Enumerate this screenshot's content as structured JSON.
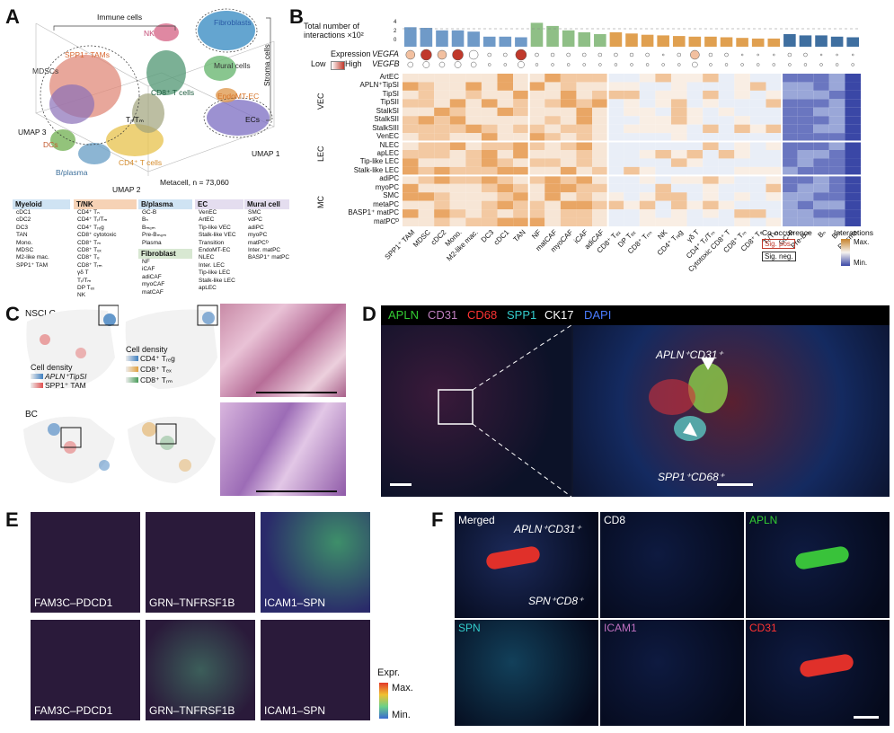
{
  "panels": {
    "a": "A",
    "b": "B",
    "c": "C",
    "d": "D",
    "e": "E",
    "f": "F"
  },
  "panelA": {
    "umap_labels": [
      {
        "id": "immune",
        "text": "Immune cells"
      },
      {
        "id": "nk",
        "text": "NK"
      },
      {
        "id": "fibro",
        "text": "Fibroblasts"
      },
      {
        "id": "stroma",
        "text": "Stroma cells"
      },
      {
        "id": "spp1",
        "text": "SPP1⁺ TAMs"
      },
      {
        "id": "mdsc",
        "text": "MDSCs"
      },
      {
        "id": "mural",
        "text": "Mural cells"
      },
      {
        "id": "cd8",
        "text": "CD8⁺ T cells"
      },
      {
        "id": "endomt",
        "text": "EndoMT-EC"
      },
      {
        "id": "trm",
        "text": "Tᵣ/Tₘ"
      },
      {
        "id": "ecs",
        "text": "ECs"
      },
      {
        "id": "dcs",
        "text": "DCs"
      },
      {
        "id": "bplasma",
        "text": "B/plasma"
      },
      {
        "id": "cd4",
        "text": "CD4⁺ T cells"
      },
      {
        "id": "metacell",
        "text": "Metacell, n = 73,060"
      },
      {
        "id": "umap1",
        "text": "UMAP 1"
      },
      {
        "id": "umap2",
        "text": "UMAP 2"
      },
      {
        "id": "umap3",
        "text": "UMAP 3"
      }
    ],
    "legend_groups": [
      {
        "title": "Myeloid",
        "color": "#cfe3f3",
        "items": [
          "cDC1",
          "cDC2",
          "DC3",
          "TAN",
          "Mono.",
          "MDSC",
          "M2-like mac.",
          "SPP1⁺ TAM"
        ]
      },
      {
        "title": "T/NK",
        "color": "#f6d2b5",
        "items": [
          "CD4⁺ Tₙ",
          "CD4⁺ Tᵣ/Tₘ",
          "CD4⁺ Tᵣₑg",
          "CD8⁺ cytotoxic",
          "CD8⁺ Tₘ",
          "CD8⁺ Tₑₓ",
          "CD8⁺ Tₑ",
          "CD8⁺ Tᵣₘ",
          "γδ T",
          "Tᵣ/Tₘ",
          "DP Tₑₓ",
          "NK"
        ]
      },
      {
        "title": "B/plasma",
        "color": "#cfe3f3",
        "items": [
          "GC-B",
          "Bₙ",
          "Bₘₑₘ",
          "Pre-Bₘₑₘ",
          "Plasma"
        ]
      },
      {
        "title": "Fibroblast",
        "color": "#d8e8d2",
        "items": [
          "NF",
          "iCAF",
          "adiCAF",
          "myoCAF",
          "matCAF"
        ]
      },
      {
        "title": "EC",
        "color": "#e4ddef",
        "items": [
          "VenEC",
          "ArtEC",
          "Tip-like VEC",
          "Stalk-like VEC",
          "Transition",
          "EndoMT-EC",
          "NLEC",
          "Inter. LEC",
          "Tip-like LEC",
          "Stalk-like LEC",
          "apLEC"
        ]
      },
      {
        "title": "Mural cell",
        "color": "#e4ddef",
        "items": [
          "SMC",
          "vdPC",
          "adiPC",
          "myoPC",
          "matPCᴰ",
          "Inter. matPC",
          "BASP1⁺ matPC"
        ]
      }
    ]
  },
  "panelB": {
    "bar_title": "Total number of interactions ×10²",
    "expression_label": "Expression",
    "vegfa": "VEGFA",
    "vegfb": "VEGFB",
    "low": "Low",
    "high": "High",
    "group_labels": [
      "VEC",
      "LEC",
      "MC"
    ],
    "row_labels": [
      "ArtEC",
      "APLN⁺TipSI",
      "TipSI",
      "TipSII",
      "StalkSI",
      "StalkSII",
      "StalkSIII",
      "VenEC",
      "NLEC",
      "apLEC",
      "Tip-like LEC",
      "Stalk-like LEC",
      "adiPC",
      "myoPC",
      "SMC",
      "metaPC",
      "BASP1⁺ matPC",
      "matPCᴰ"
    ],
    "col_labels": [
      "SPP1⁺ TAM",
      "MDSC",
      "cDC2",
      "Mono.",
      "M2-like mac.",
      "DC3",
      "cDC1",
      "TAN",
      "NF",
      "matCAF",
      "myoCAF",
      "iCAF",
      "adiCAF",
      "CD8⁺ Tₑₓ",
      "DP Tₑₓ",
      "CD8⁺ Tᵣₘ",
      "NK",
      "CD4⁺ Tᵣₑg",
      "γδ T",
      "CD4⁺ Tᵣ/Tₘ",
      "Cytotoxic CD8⁺ T",
      "CD8⁺ Tₘ",
      "CD8⁺ Tₑ",
      "Tᵣ/Tₘ",
      "GC-B",
      "Pre-Bₘ",
      "Bₙ",
      "Bₘ",
      "Plasma"
    ],
    "bars": [
      3.1,
      3.0,
      2.6,
      2.6,
      2.4,
      1.6,
      1.6,
      1.5,
      3.8,
      3.3,
      2.6,
      2.3,
      2.0,
      2.3,
      2.1,
      1.9,
      1.8,
      1.7,
      1.6,
      1.6,
      1.5,
      1.4,
      1.3,
      1.3,
      2.0,
      1.8,
      1.8,
      1.6,
      1.5
    ],
    "bar_axis": [
      "0",
      "2",
      "4"
    ],
    "cooc_label": "Co-occurrence",
    "sig_pos": "Sig. pos.",
    "sig_neg": "Sig. neg.",
    "interactions_label": "Interactions",
    "max": "Max.",
    "min": "Min.",
    "colors": {
      "pos": "#c6822b",
      "neg": "#3a47a6",
      "mid": "#f6f3ef"
    }
  },
  "panelC": {
    "nsclc": "NSCLC",
    "bc": "BC",
    "cell_density": "Cell density",
    "density1": "APLN⁺TipSI",
    "density2": "SPP1⁺ TAM",
    "density3": "CD4⁺ Tᵣₑg",
    "density4": "CD8⁺ Tₑₓ",
    "density5": "CD8⁺ Tᵣₘ"
  },
  "panelD": {
    "channels": [
      {
        "text": "APLN",
        "color": "#33cc33"
      },
      {
        "text": "CD31",
        "color": "#c080c0"
      },
      {
        "text": "CD68",
        "color": "#ff3333"
      },
      {
        "text": "SPP1",
        "color": "#33cccc"
      },
      {
        "text": "CK17",
        "color": "#ffffff"
      },
      {
        "text": "DAPI",
        "color": "#4a7cff"
      }
    ],
    "label1": "APLN⁺CD31⁺",
    "label2": "SPP1⁺CD68⁺"
  },
  "panelE": {
    "tiles": [
      "FAM3C–PDCD1",
      "GRN–TNFRSF1B",
      "ICAM1–SPN",
      "FAM3C–PDCD1",
      "GRN–TNFRSF1B",
      "ICAM1–SPN"
    ],
    "expr": "Expr.",
    "max": "Max.",
    "min": "Min."
  },
  "panelF": {
    "tiles": [
      {
        "text": "Merged",
        "color": "#ffffff"
      },
      {
        "text": "CD8",
        "color": "#ffffff"
      },
      {
        "text": "APLN",
        "color": "#33cc33"
      },
      {
        "text": "SPN",
        "color": "#33cccc"
      },
      {
        "text": "ICAM1",
        "color": "#c070c0"
      },
      {
        "text": "CD31",
        "color": "#ff3333"
      }
    ],
    "label1": "APLN⁺CD31⁺",
    "label2": "SPN⁺CD8⁺"
  }
}
